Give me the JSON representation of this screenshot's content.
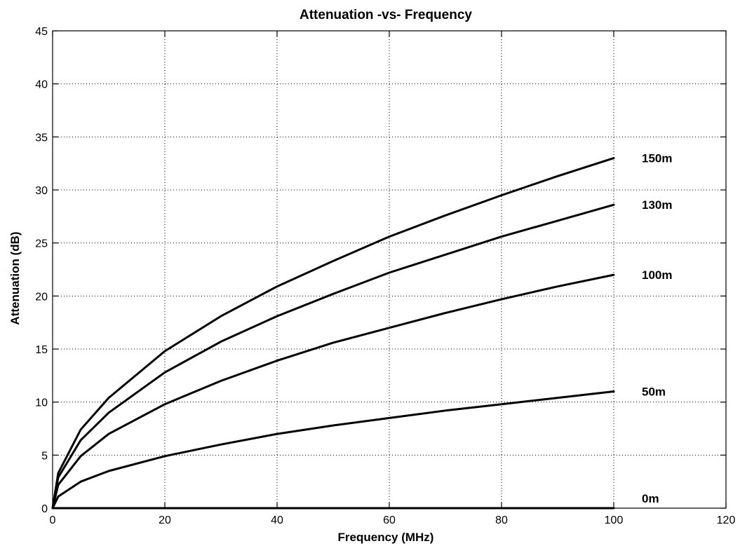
{
  "chart_data": {
    "type": "line",
    "title": "Attenuation -vs- Frequency",
    "xlabel": "Frequency (MHz)",
    "ylabel": "Attenuation (dB)",
    "xlim": [
      0,
      120
    ],
    "ylim": [
      0,
      45
    ],
    "xticks": [
      0,
      20,
      40,
      60,
      80,
      100,
      120
    ],
    "yticks": [
      0,
      5,
      10,
      15,
      20,
      25,
      30,
      35,
      40,
      45
    ],
    "grid": true,
    "x": [
      0,
      1,
      5,
      10,
      20,
      30,
      40,
      50,
      60,
      70,
      80,
      90,
      100
    ],
    "series": [
      {
        "name": "150m",
        "values": [
          0,
          3.3,
          7.4,
          10.4,
          14.8,
          18.1,
          20.9,
          23.3,
          25.6,
          27.6,
          29.5,
          31.3,
          33.0
        ]
      },
      {
        "name": "130m",
        "values": [
          0,
          2.9,
          6.4,
          9.0,
          12.8,
          15.7,
          18.1,
          20.2,
          22.2,
          23.9,
          25.6,
          27.1,
          28.6
        ]
      },
      {
        "name": "100m",
        "values": [
          0,
          2.2,
          4.9,
          7.0,
          9.8,
          12.0,
          13.9,
          15.6,
          17.0,
          18.4,
          19.7,
          20.9,
          22.0
        ]
      },
      {
        "name": "50m",
        "values": [
          0,
          1.1,
          2.5,
          3.5,
          4.9,
          6.0,
          7.0,
          7.8,
          8.5,
          9.2,
          9.8,
          10.4,
          11.0
        ]
      },
      {
        "name": "0m",
        "values": [
          0,
          0,
          0,
          0,
          0,
          0,
          0,
          0,
          0,
          0,
          0,
          0,
          0
        ]
      }
    ]
  }
}
